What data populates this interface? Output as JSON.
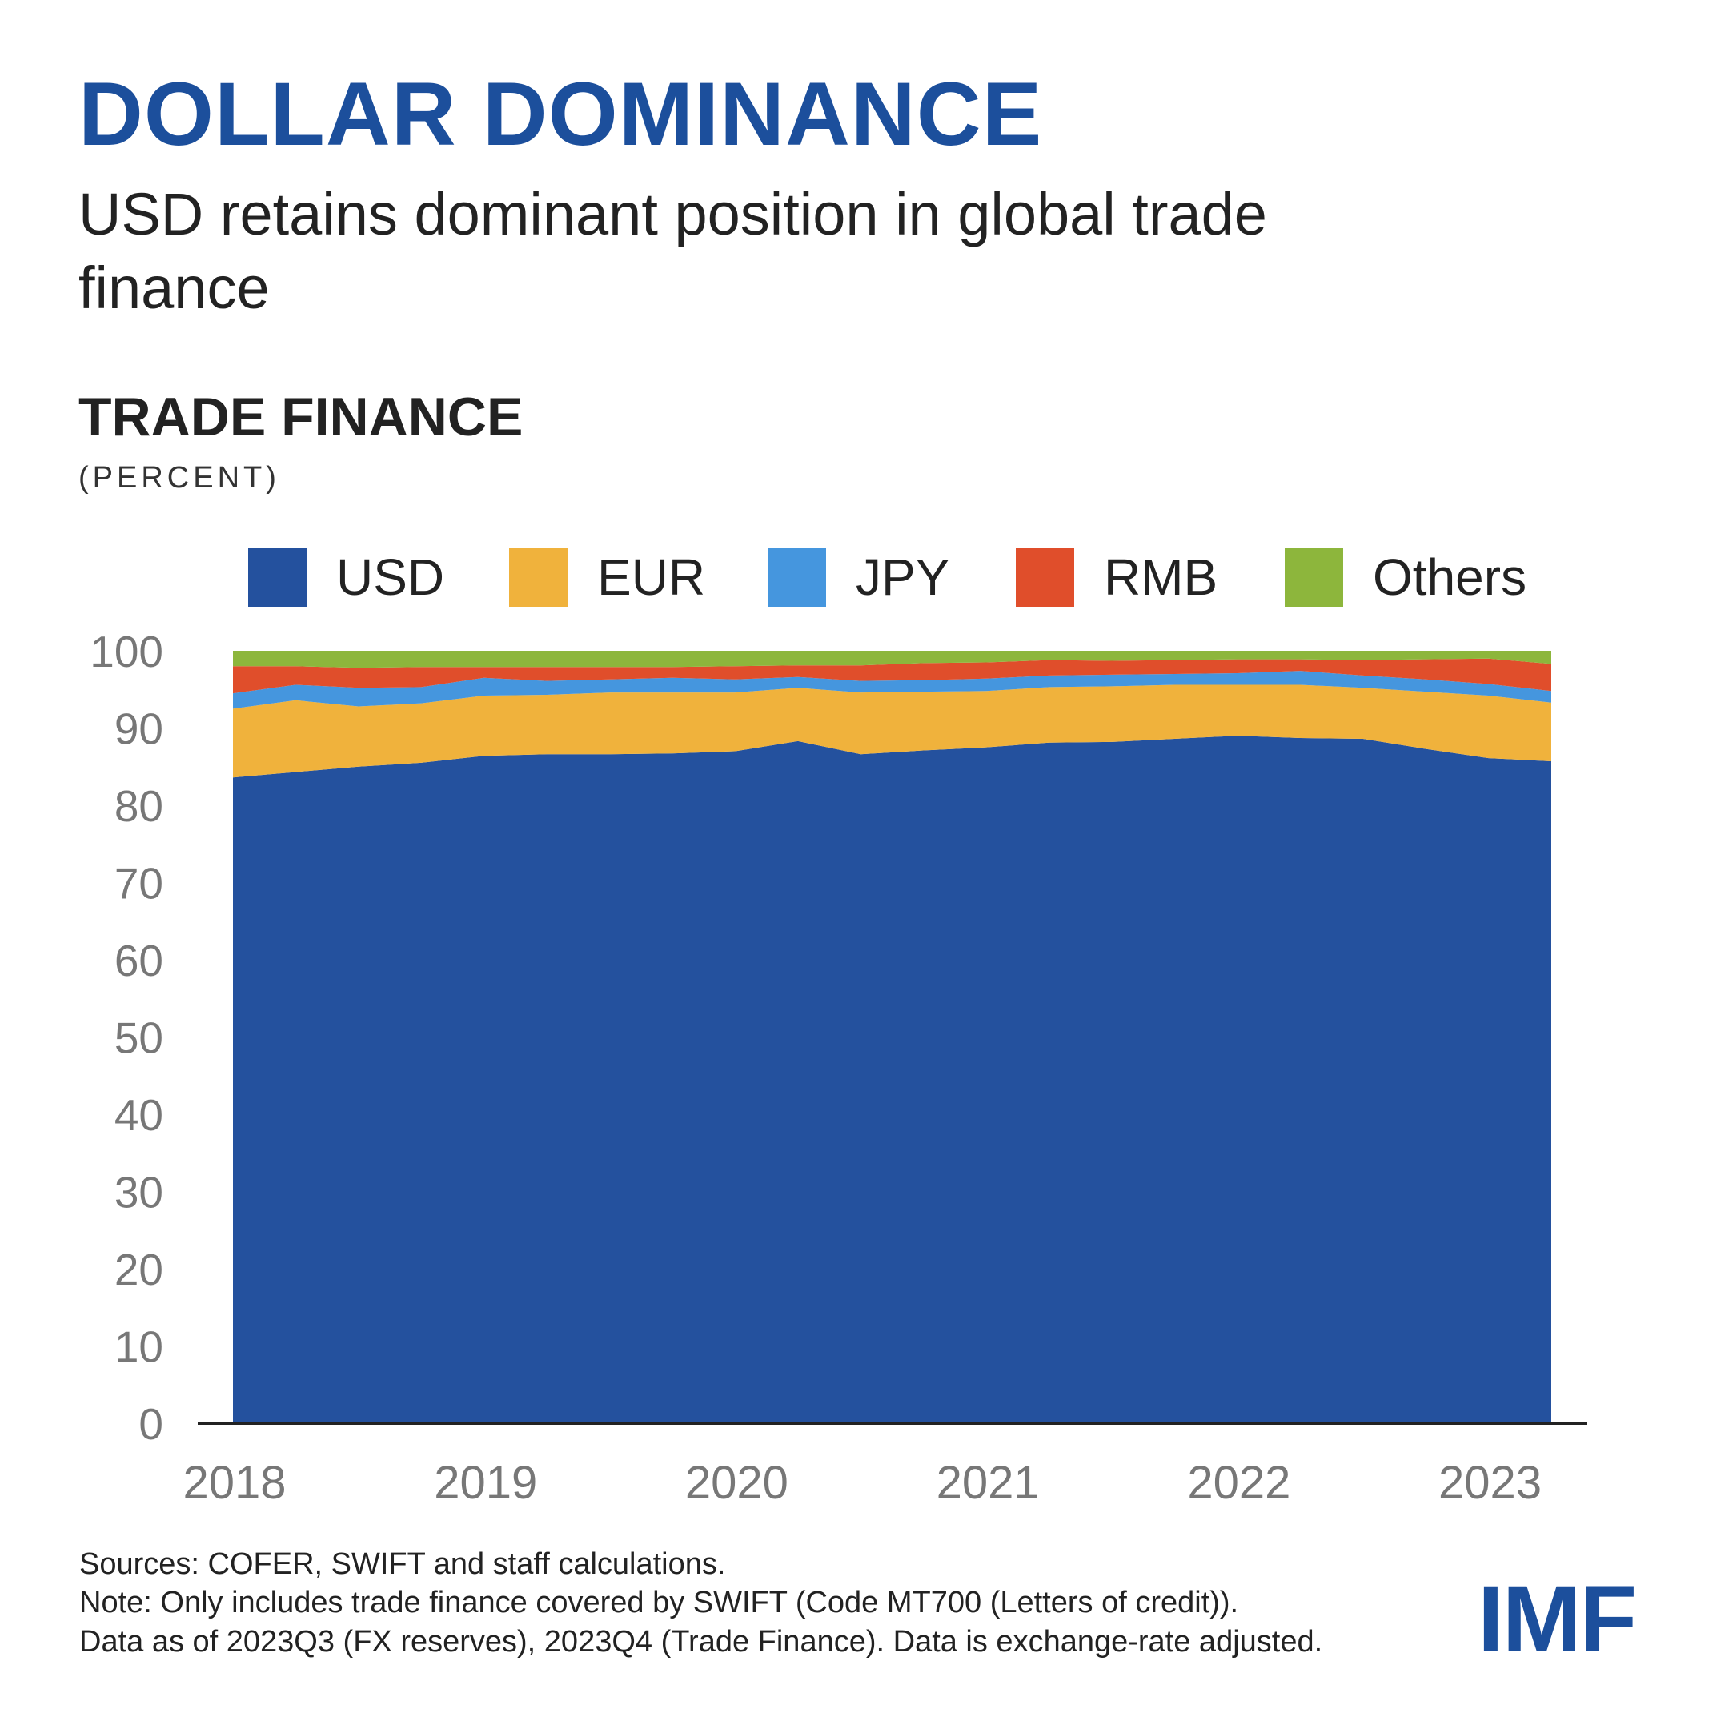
{
  "header": {
    "title": "DOLLAR DOMINANCE",
    "subtitle": "USD retains dominant position in global trade finance"
  },
  "chart_data": {
    "type": "area",
    "stacked": true,
    "title": "TRADE FINANCE",
    "ylabel": "(PERCENT)",
    "xlabel": "",
    "ylim": [
      0,
      100
    ],
    "yticks": [
      "0",
      "10",
      "20",
      "30",
      "40",
      "50",
      "60",
      "70",
      "80",
      "90",
      "100"
    ],
    "xtick_labels": [
      "2018",
      "2019",
      "2020",
      "2021",
      "2022",
      "2023"
    ],
    "xtick_index": [
      0,
      4,
      8,
      12,
      16,
      20
    ],
    "categories": [
      "2018Q1",
      "2018Q2",
      "2018Q3",
      "2018Q4",
      "2019Q1",
      "2019Q2",
      "2019Q3",
      "2019Q4",
      "2020Q1",
      "2020Q2",
      "2020Q3",
      "2020Q4",
      "2021Q1",
      "2021Q2",
      "2021Q3",
      "2021Q4",
      "2022Q1",
      "2022Q2",
      "2022Q3",
      "2022Q4",
      "2023Q1",
      "2023Q2"
    ],
    "grid": false,
    "legend_position": "top",
    "series": [
      {
        "name": "USD",
        "color": "#24519e",
        "values": [
          83.6,
          84.3,
          85.0,
          85.5,
          86.4,
          86.6,
          86.6,
          86.7,
          87.0,
          88.3,
          86.6,
          87.1,
          87.5,
          88.1,
          88.2,
          88.6,
          89.0,
          88.7,
          88.6,
          87.3,
          86.1,
          85.7
        ]
      },
      {
        "name": "EUR",
        "color": "#f0b23c",
        "values": [
          8.9,
          9.3,
          7.8,
          7.7,
          7.8,
          7.7,
          8.0,
          7.9,
          7.6,
          6.9,
          8.0,
          7.6,
          7.3,
          7.2,
          7.2,
          7.0,
          6.6,
          6.9,
          6.6,
          7.4,
          8.1,
          7.6
        ]
      },
      {
        "name": "JPY",
        "color": "#4596de",
        "values": [
          2.0,
          2.0,
          2.4,
          2.1,
          2.3,
          1.8,
          1.7,
          1.9,
          1.7,
          1.4,
          1.5,
          1.5,
          1.6,
          1.5,
          1.5,
          1.4,
          1.5,
          1.8,
          1.6,
          1.6,
          1.5,
          1.5
        ]
      },
      {
        "name": "RMB",
        "color": "#e04e2b",
        "values": [
          3.5,
          2.4,
          2.6,
          2.6,
          1.4,
          1.8,
          1.6,
          1.4,
          1.7,
          1.5,
          2.0,
          2.2,
          2.1,
          2.0,
          1.8,
          1.8,
          1.8,
          1.5,
          2.0,
          2.6,
          3.3,
          3.5
        ]
      },
      {
        "name": "Others",
        "color": "#8db63c",
        "values": [
          2.0,
          2.0,
          2.2,
          2.1,
          2.1,
          2.1,
          2.1,
          2.1,
          2.0,
          1.9,
          1.9,
          1.6,
          1.5,
          1.2,
          1.3,
          1.2,
          1.1,
          1.1,
          1.2,
          1.1,
          1.0,
          1.7
        ]
      }
    ]
  },
  "footer": {
    "sources": "Sources: COFER, SWIFT and staff calculations.",
    "note": "Note: Only includes trade finance covered by SWIFT (Code MT700 (Letters of credit)).",
    "data_note": "Data as of 2023Q3 (FX reserves), 2023Q4 (Trade Finance). Data is exchange-rate adjusted.",
    "logo": "IMF"
  },
  "colors": {
    "title": "#1c4f9c",
    "axis": "#222222",
    "tick_text": "#777777"
  }
}
